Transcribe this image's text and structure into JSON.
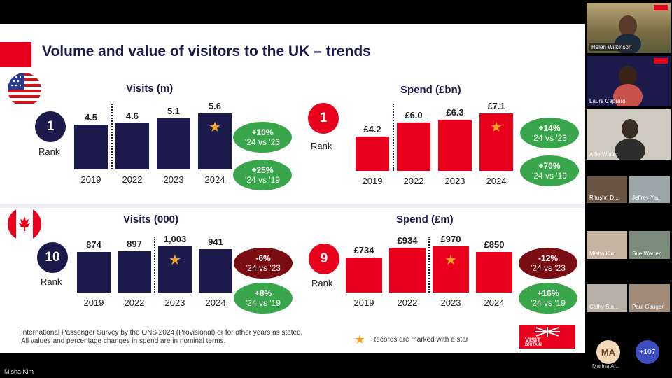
{
  "slide": {
    "title": "Volume and value of visitors to the UK – trends",
    "footnote_line1": "International Passenger Survey by the ONS 2024 (Provisional) or for other years as stated.",
    "footnote_line2": "All values and percentage changes in spend are in nominal terms.",
    "legend_text": "Records are marked with a star",
    "logo_text": "VISIT",
    "logo_sub": "BRITAIN",
    "rank_label": "Rank"
  },
  "usa": {
    "visits": {
      "title": "Visits (m)",
      "rank": "1"
    },
    "spend": {
      "title": "Spend (£bn)",
      "rank": "1"
    },
    "visits_pills": [
      {
        "value": "+10%",
        "period": "'24 vs '23"
      },
      {
        "value": "+25%",
        "period": "'24 vs '19"
      }
    ],
    "spend_pills": [
      {
        "value": "+14%",
        "period": "'24 vs '23"
      },
      {
        "value": "+70%",
        "period": "'24 vs '19"
      }
    ]
  },
  "canada": {
    "visits": {
      "title": "Visits (000)",
      "rank": "10"
    },
    "spend": {
      "title": "Spend (£m)",
      "rank": "9"
    },
    "visits_pills": [
      {
        "value": "-6%",
        "period": "'24 vs '23"
      },
      {
        "value": "+8%",
        "period": "'24 vs '19"
      }
    ],
    "spend_pills": [
      {
        "value": "-12%",
        "period": "'24 vs '23"
      },
      {
        "value": "+16%",
        "period": "'24 vs '19"
      }
    ]
  },
  "chart_data": [
    {
      "type": "bar",
      "title": "Visits (m)",
      "categories": [
        "2019",
        "2022",
        "2023",
        "2024"
      ],
      "values": [
        4.5,
        4.6,
        5.1,
        5.6
      ],
      "labels": [
        "4.5",
        "4.6",
        "5.1",
        "5.6"
      ],
      "record_index": 3,
      "color": "#1b1a4a",
      "ylim": [
        0,
        5.6
      ]
    },
    {
      "type": "bar",
      "title": "Spend (£bn)",
      "categories": [
        "2019",
        "2022",
        "2023",
        "2024"
      ],
      "values": [
        4.2,
        6.0,
        6.3,
        7.1
      ],
      "labels": [
        "£4.2",
        "£6.0",
        "£6.3",
        "£7.1"
      ],
      "record_index": 3,
      "color": "#e8001c",
      "ylim": [
        0,
        7.1
      ]
    },
    {
      "type": "bar",
      "title": "Visits (000)",
      "categories": [
        "2019",
        "2022",
        "2023",
        "2024"
      ],
      "values": [
        874,
        897,
        1003,
        941
      ],
      "labels": [
        "874",
        "897",
        "1,003",
        "941"
      ],
      "record_index": 2,
      "color": "#1b1a4a",
      "ylim": [
        0,
        1003
      ]
    },
    {
      "type": "bar",
      "title": "Spend (£m)",
      "categories": [
        "2019",
        "2022",
        "2023",
        "2024"
      ],
      "values": [
        734,
        934,
        970,
        850
      ],
      "labels": [
        "£734",
        "£934",
        "£970",
        "£850"
      ],
      "record_index": 2,
      "color": "#e8001c",
      "ylim": [
        0,
        970
      ]
    }
  ],
  "participants": [
    {
      "name": "Helen Wilkinson"
    },
    {
      "name": "Laura Capraro"
    },
    {
      "name": "Alfie Winter"
    },
    {
      "name": "Ritushri D..."
    },
    {
      "name": "Jeffrey Yau"
    },
    {
      "name": "Misha Kim"
    },
    {
      "name": "Sue Warren"
    },
    {
      "name": "Cathy Sta..."
    },
    {
      "name": "Paul Gauger"
    },
    {
      "name": "Marina A...",
      "initials": "MA"
    }
  ],
  "more_count": "+107",
  "current_speaker": "Misha Kim",
  "colors": {
    "navy": "#1b1a4a",
    "red": "#e8001c",
    "green": "#3aa64b",
    "dark_red": "#7a0e12",
    "star": "#f5a623"
  }
}
